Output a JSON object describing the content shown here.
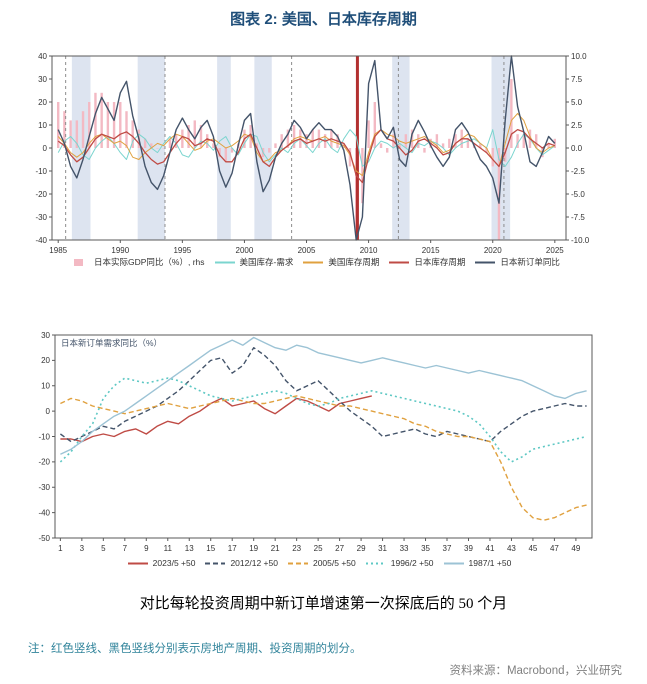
{
  "page": {
    "title": "图表 2: 美国、日本库存周期",
    "caption": "对比每轮投资周期中新订单增速第一次探底后的 50 个月",
    "note": "注：红色竖线、黑色竖线分别表示房地产周期、投资周期的划分。",
    "source": "资料来源：Macrobond，兴业研究",
    "title_color": "#1f4e79",
    "note_color": "#31849b",
    "source_color": "#808080"
  },
  "chart_data": [
    {
      "type": "line",
      "title": "美国、日本库存周期",
      "xlim": [
        1984.5,
        2025.9
      ],
      "left_ylim": [
        -40,
        40
      ],
      "right_ylim": [
        -10,
        10
      ],
      "x_ticks": [
        1985,
        1990,
        1995,
        2000,
        2005,
        2010,
        2015,
        2020,
        2025
      ],
      "left_ticks": [
        40,
        30,
        20,
        10,
        0,
        -10,
        -20,
        -30,
        -40
      ],
      "right_ticks": [
        10,
        7.5,
        5,
        2.5,
        0,
        -2.5,
        -5,
        -7.5,
        -10
      ],
      "band_color": "#dde4f0",
      "bands": [
        [
          1986.1,
          1987.6
        ],
        [
          1991.4,
          1993.6
        ],
        [
          1997.8,
          1998.9
        ],
        [
          2000.8,
          2002.2
        ],
        [
          2011.9,
          2013.3
        ],
        [
          2019.9,
          2021.4
        ]
      ],
      "dashed_vlines": [
        1985.6,
        1993.6,
        2003.8,
        2012.4,
        2020.9
      ],
      "red_vlines": [
        2009.1
      ],
      "red_vline_color": "#b23030",
      "x": [
        1985,
        1985.5,
        1986,
        1986.5,
        1987,
        1987.5,
        1988,
        1988.5,
        1989,
        1989.5,
        1990,
        1990.5,
        1991,
        1991.5,
        1992,
        1992.5,
        1993,
        1993.5,
        1994,
        1994.5,
        1995,
        1995.5,
        1996,
        1996.5,
        1997,
        1997.5,
        1998,
        1998.5,
        1999,
        1999.5,
        2000,
        2000.5,
        2001,
        2001.5,
        2002,
        2002.5,
        2003,
        2003.5,
        2004,
        2004.5,
        2005,
        2005.5,
        2006,
        2006.5,
        2007,
        2007.5,
        2008,
        2008.5,
        2009,
        2009.5,
        2010,
        2010.5,
        2011,
        2011.5,
        2012,
        2012.5,
        2013,
        2013.5,
        2014,
        2014.5,
        2015,
        2015.5,
        2016,
        2016.5,
        2017,
        2017.5,
        2018,
        2018.5,
        2019,
        2019.5,
        2020,
        2020.5,
        2021,
        2021.5,
        2022,
        2022.5,
        2023,
        2023.5,
        2024,
        2024.5,
        2025
      ],
      "series": [
        {
          "name": "日本实际GDP同比（%）, rhs",
          "kind": "bar",
          "axis": "right",
          "color": "#f3b9c3",
          "values": [
            5,
            4,
            3,
            3,
            4,
            5,
            6,
            6,
            5,
            5,
            5,
            4,
            3,
            2,
            1,
            0.5,
            0,
            0,
            1,
            1.5,
            2,
            2.5,
            3,
            2.5,
            1.5,
            0.5,
            -1,
            -1.5,
            -0.5,
            0.5,
            2,
            2.5,
            0.5,
            -1,
            -0.5,
            0.5,
            1.5,
            2,
            2.5,
            2,
            1.5,
            2,
            2,
            1.5,
            2,
            1.5,
            0.5,
            -2,
            -9,
            -6,
            3,
            5,
            0.5,
            -0.5,
            1.5,
            0.5,
            1.5,
            2,
            1.5,
            -0.5,
            1,
            1.5,
            0.5,
            1,
            1.5,
            2,
            1,
            0.5,
            0.5,
            -0.5,
            -2,
            -10,
            -1.5,
            7.5,
            1.5,
            1.5,
            2,
            1.5,
            -1,
            0.5,
            1
          ]
        },
        {
          "name": "美国库存-需求",
          "kind": "line",
          "axis": "left",
          "color": "#7bd5cf",
          "width": 1,
          "values": [
            -2,
            3,
            5,
            2,
            -3,
            -5,
            0,
            3,
            5,
            2,
            -2,
            -5,
            3,
            6,
            4,
            0,
            -2,
            2,
            5,
            2,
            -3,
            -4,
            0,
            3,
            2,
            -1,
            3,
            5,
            0,
            -3,
            2,
            6,
            5,
            -2,
            -6,
            -3,
            0,
            -2,
            2,
            4,
            1,
            -2,
            2,
            4,
            0,
            -2,
            4,
            8,
            5,
            -8,
            -6,
            0,
            3,
            2,
            0,
            2,
            0,
            -2,
            2,
            1,
            3,
            2,
            0,
            -3,
            0,
            2,
            3,
            4,
            2,
            0,
            8,
            -5,
            -8,
            -4,
            2,
            6,
            4,
            0,
            -3,
            -1,
            1
          ]
        },
        {
          "name": "美国库存周期",
          "kind": "line",
          "axis": "left",
          "color": "#e0a13f",
          "width": 1,
          "values": [
            5,
            2,
            -2,
            -4,
            -2,
            2,
            5,
            6,
            4,
            2,
            3,
            1,
            -4,
            -5,
            -2,
            0,
            2,
            1,
            4,
            6,
            5,
            2,
            -1,
            0,
            3,
            4,
            2,
            0,
            1,
            3,
            6,
            5,
            -2,
            -6,
            -5,
            -2,
            -1,
            1,
            4,
            5,
            4,
            3,
            4,
            5,
            3,
            2,
            1,
            -3,
            -10,
            -12,
            -2,
            6,
            8,
            6,
            5,
            3,
            2,
            3,
            4,
            5,
            3,
            1,
            -2,
            -1,
            2,
            4,
            6,
            5,
            2,
            0,
            -5,
            -8,
            2,
            12,
            15,
            12,
            5,
            0,
            -2,
            0,
            1
          ]
        },
        {
          "name": "日本库存周期",
          "kind": "line",
          "axis": "left",
          "color": "#bf4b45",
          "width": 1.3,
          "values": [
            3,
            1,
            -3,
            -6,
            -4,
            0,
            4,
            6,
            5,
            4,
            6,
            7,
            5,
            2,
            -2,
            -5,
            -7,
            -6,
            -2,
            2,
            5,
            4,
            1,
            2,
            4,
            3,
            -3,
            -6,
            -6,
            -2,
            4,
            6,
            0,
            -6,
            -8,
            -4,
            -1,
            1,
            3,
            4,
            2,
            3,
            4,
            3,
            4,
            3,
            2,
            -2,
            -12,
            -15,
            -4,
            5,
            8,
            4,
            3,
            0,
            -3,
            -1,
            3,
            4,
            2,
            0,
            -3,
            -2,
            2,
            4,
            4,
            2,
            0,
            -2,
            -5,
            -8,
            -2,
            6,
            8,
            7,
            4,
            2,
            0,
            2,
            1
          ]
        },
        {
          "name": "日本新订单同比",
          "kind": "line",
          "axis": "left",
          "color": "#44546a",
          "width": 1.4,
          "values": [
            8,
            2,
            -8,
            -13,
            -5,
            5,
            15,
            22,
            17,
            12,
            24,
            29,
            14,
            4,
            -8,
            -15,
            -18,
            -12,
            -2,
            8,
            13,
            8,
            4,
            9,
            12,
            5,
            -10,
            -17,
            -11,
            1,
            12,
            15,
            -6,
            -19,
            -14,
            -4,
            2,
            6,
            12,
            9,
            4,
            8,
            11,
            8,
            8,
            5,
            -1,
            -16,
            -41,
            -30,
            28,
            38,
            8,
            4,
            9,
            -5,
            -8,
            6,
            12,
            7,
            1,
            -4,
            -8,
            -4,
            8,
            11,
            7,
            1,
            -5,
            -8,
            -13,
            -24,
            12,
            41,
            18,
            7,
            -6,
            -8,
            -2,
            5,
            2
          ]
        }
      ]
    },
    {
      "type": "line",
      "inner_label": "日本新订单需求同比（%）",
      "xlim": [
        0.5,
        50.5
      ],
      "ylim": [
        -50,
        30
      ],
      "y_ticks": [
        30,
        20,
        10,
        0,
        -10,
        -20,
        -30,
        -40,
        -50
      ],
      "x_ticks": [
        1,
        3,
        5,
        7,
        9,
        11,
        13,
        15,
        17,
        19,
        21,
        23,
        25,
        27,
        29,
        31,
        33,
        35,
        37,
        39,
        41,
        43,
        45,
        47,
        49
      ],
      "x": [
        1,
        2,
        3,
        4,
        5,
        6,
        7,
        8,
        9,
        10,
        11,
        12,
        13,
        14,
        15,
        16,
        17,
        18,
        19,
        20,
        21,
        22,
        23,
        24,
        25,
        26,
        27,
        28,
        29,
        30,
        31,
        32,
        33,
        34,
        35,
        36,
        37,
        38,
        39,
        40,
        41,
        42,
        43,
        44,
        45,
        46,
        47,
        48,
        49,
        50
      ],
      "series": [
        {
          "name": "2023/5 +50",
          "color": "#bf4b45",
          "dash": "solid",
          "width": 1.4,
          "values": [
            -11,
            -11,
            -12,
            -10,
            -9,
            -10,
            -8,
            -7,
            -9,
            -6,
            -4,
            -5,
            -2,
            0,
            3,
            5,
            2,
            3,
            4,
            1,
            -1,
            2,
            5,
            4,
            2,
            0,
            3,
            4,
            5,
            6,
            null,
            null,
            null,
            null,
            null,
            null,
            null,
            null,
            null,
            null,
            null,
            null,
            null,
            null,
            null,
            null,
            null,
            null,
            null,
            null
          ]
        },
        {
          "name": "2012/12 +50",
          "color": "#44546a",
          "dash": "dashed",
          "width": 1.4,
          "values": [
            -9,
            -12,
            -10,
            -8,
            -6,
            -7,
            -4,
            -2,
            0,
            2,
            5,
            8,
            12,
            16,
            20,
            21,
            15,
            18,
            25,
            22,
            18,
            12,
            8,
            10,
            12,
            8,
            4,
            0,
            -3,
            -6,
            -10,
            -9,
            -8,
            -7,
            -9,
            -10,
            -8,
            -9,
            -10,
            -11,
            -12,
            -8,
            -5,
            -2,
            0,
            1,
            2,
            3,
            2,
            2
          ]
        },
        {
          "name": "2005/5 +50",
          "color": "#e0a13f",
          "dash": "dashed",
          "width": 1.4,
          "values": [
            3,
            5,
            4,
            2,
            1,
            0,
            -1,
            0,
            1,
            2,
            3,
            2,
            1,
            2,
            3,
            4,
            5,
            4,
            3,
            3,
            4,
            5,
            6,
            5,
            4,
            3,
            2,
            2,
            1,
            0,
            -1,
            -2,
            -3,
            -5,
            -6,
            -8,
            -9,
            -10,
            -10,
            -11,
            -12,
            -20,
            -30,
            -38,
            -42,
            -43,
            -42,
            -40,
            -38,
            -37
          ]
        },
        {
          "name": "1996/2 +50",
          "color": "#5ec8c4",
          "dash": "dotted",
          "width": 1.6,
          "values": [
            -20,
            -16,
            -10,
            -5,
            5,
            10,
            13,
            12,
            11,
            12,
            13,
            12,
            10,
            8,
            6,
            5,
            4,
            5,
            6,
            7,
            8,
            7,
            5,
            3,
            2,
            3,
            5,
            6,
            7,
            8,
            7,
            6,
            5,
            4,
            3,
            2,
            1,
            0,
            -2,
            -5,
            -10,
            -16,
            -20,
            -18,
            -15,
            -14,
            -13,
            -12,
            -11,
            -10
          ]
        },
        {
          "name": "1987/1 +50",
          "color": "#9cc3d5",
          "dash": "solid",
          "width": 1.4,
          "values": [
            -17,
            -15,
            -12,
            -8,
            -5,
            -2,
            0,
            3,
            6,
            9,
            12,
            15,
            18,
            21,
            24,
            26,
            28,
            26,
            29,
            27,
            25,
            24,
            26,
            25,
            23,
            22,
            21,
            20,
            19,
            20,
            21,
            20,
            19,
            18,
            17,
            18,
            17,
            16,
            15,
            16,
            15,
            14,
            13,
            12,
            10,
            8,
            6,
            5,
            7,
            8
          ]
        }
      ]
    }
  ]
}
